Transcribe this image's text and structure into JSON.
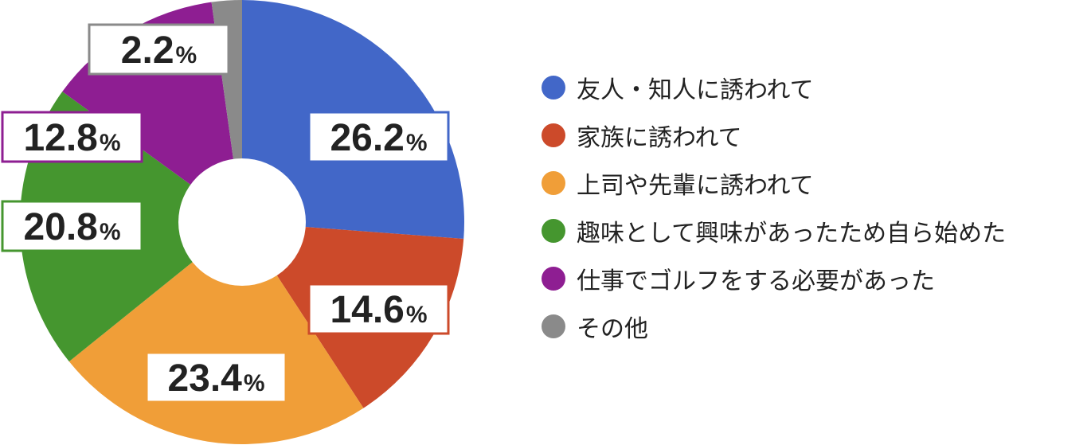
{
  "chart_data": {
    "type": "pie",
    "variant": "donut",
    "start_angle_deg": 0,
    "direction": "clockwise",
    "value_suffix": "%",
    "legend_position": "right",
    "slices": [
      {
        "label": "友人・知人に誘われて",
        "value": 26.2,
        "value_text": "26.2",
        "color": "#4267C8"
      },
      {
        "label": "家族に誘われて",
        "value": 14.6,
        "value_text": "14.6",
        "color": "#CC4A2A"
      },
      {
        "label": "上司や先輩に誘われて",
        "value": 23.4,
        "value_text": "23.4",
        "color": "#F09E38"
      },
      {
        "label": "趣味として興味があったため自ら始めた",
        "value": 20.8,
        "value_text": "20.8",
        "color": "#45962F"
      },
      {
        "label": "仕事でゴルフをする必要があった",
        "value": 12.8,
        "value_text": "12.8",
        "color": "#8E1E92"
      },
      {
        "label": "その他",
        "value": 2.2,
        "value_text": "2.2",
        "color": "#8A8A8A"
      }
    ]
  }
}
